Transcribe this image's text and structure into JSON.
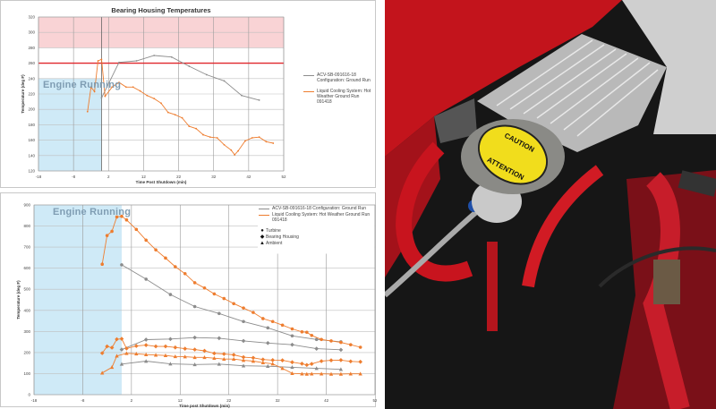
{
  "chart_data": [
    {
      "type": "line",
      "title": "Bearing Housing Temperatures",
      "xlabel": "Time Post Shutdown  (min)",
      "ylabel": "Temperature (deg F)",
      "xlim": [
        -18,
        52
      ],
      "ylim": [
        120,
        320
      ],
      "xticks": [
        -18,
        -8,
        2,
        12,
        22,
        32,
        42,
        52
      ],
      "yticks": [
        120,
        140,
        160,
        180,
        200,
        220,
        240,
        260,
        280,
        300,
        320
      ],
      "grid": true,
      "legend_placement": "right",
      "annotations": {
        "engine_running_label": "Engine Running",
        "engine_running_x": [
          -18,
          0
        ],
        "engine_running_ymax": 240,
        "limit_line_y": 260,
        "caution_band_y": [
          280,
          320
        ],
        "shutdown_line_x": 0
      },
      "colors": {
        "limit": "#e0262b",
        "caution_band": "#f9d3d5",
        "engine_region": "#cfeaf7"
      },
      "series": [
        {
          "name": "ACV-SB-091616-18 Configuration: Ground Run",
          "color": "#8c8c8c",
          "x": [
            0,
            5,
            10,
            15,
            20,
            25,
            30,
            35,
            40,
            45
          ],
          "y": [
            215,
            261,
            263,
            270,
            268,
            256,
            245,
            237,
            218,
            212
          ]
        },
        {
          "name": "Liquid Cooling System: Hot Weather Ground Run 091418",
          "color": "#ee7d2f",
          "x": [
            -4,
            -3,
            -2,
            -1,
            0,
            1,
            3,
            5,
            7,
            9,
            11,
            13,
            15,
            17,
            19,
            21,
            23,
            25,
            27,
            29,
            31,
            33,
            35,
            37,
            38,
            39,
            41,
            43,
            45,
            47,
            49
          ],
          "y": [
            197,
            229,
            223,
            263,
            265,
            217,
            229,
            235,
            229,
            229,
            224,
            218,
            214,
            208,
            196,
            193,
            189,
            178,
            175,
            167,
            164,
            163,
            154,
            147,
            141,
            146,
            159,
            163,
            164,
            158,
            156
          ]
        }
      ]
    },
    {
      "type": "line",
      "title": "",
      "xlabel": "Time post Shutdown  (min)",
      "ylabel": "Temperature (deg F)",
      "xlim": [
        -18,
        52
      ],
      "ylim": [
        0,
        900
      ],
      "xticks": [
        -18,
        -8,
        2,
        12,
        22,
        32,
        42,
        52
      ],
      "yticks": [
        0,
        100,
        200,
        300,
        400,
        500,
        600,
        700,
        800,
        900
      ],
      "grid": true,
      "legend_placement": "top-right",
      "annotations": {
        "engine_running_label": "Engine Running",
        "engine_running_x": [
          -18,
          0
        ]
      },
      "legend_lines": [
        {
          "name": "ACV-SB-091616-18 Configuration: Ground Run",
          "color": "#8c8c8c"
        },
        {
          "name": "Liquid Cooling System: Hot Weather Ground Run 091418",
          "color": "#ee7d2f"
        }
      ],
      "legend_markers": [
        {
          "name": "Turbine",
          "marker": "circle"
        },
        {
          "name": "Bearing Housing",
          "marker": "diamond"
        },
        {
          "name": "Ambient",
          "marker": "triangle"
        }
      ],
      "series": [
        {
          "config": "ACV-SB-091616-18 Configuration: Ground Run",
          "measurement": "Turbine",
          "marker": "circle",
          "color": "#8c8c8c",
          "x": [
            0,
            5,
            10,
            15,
            20,
            25,
            30,
            35,
            40,
            45
          ],
          "y": [
            616,
            548,
            475,
            418,
            385,
            347,
            317,
            279,
            262,
            251
          ]
        },
        {
          "config": "ACV-SB-091616-18 Configuration: Ground Run",
          "measurement": "Bearing Housing",
          "marker": "diamond",
          "color": "#8c8c8c",
          "x": [
            0,
            5,
            10,
            15,
            20,
            25,
            30,
            35,
            40,
            45
          ],
          "y": [
            214,
            261,
            264,
            271,
            268,
            255,
            245,
            237,
            218,
            213
          ]
        },
        {
          "config": "ACV-SB-091616-18 Configuration: Ground Run",
          "measurement": "Ambient",
          "marker": "triangle",
          "color": "#8c8c8c",
          "x": [
            0,
            5,
            10,
            15,
            20,
            25,
            30,
            35,
            40,
            45
          ],
          "y": [
            145,
            159,
            146,
            143,
            145,
            137,
            135,
            130,
            125,
            120
          ]
        },
        {
          "config": "Liquid Cooling System: Hot Weather Ground Run 091418",
          "measurement": "Turbine",
          "marker": "circle",
          "color": "#ee7d2f",
          "x": [
            -4,
            -3,
            -2,
            -1,
            0,
            1,
            3,
            5,
            7,
            9,
            11,
            13,
            15,
            17,
            19,
            21,
            23,
            25,
            27,
            29,
            31,
            33,
            35,
            37,
            38,
            39,
            41,
            43,
            45,
            47,
            49
          ],
          "y": [
            619,
            755,
            775,
            843,
            846,
            829,
            784,
            733,
            687,
            648,
            607,
            574,
            531,
            506,
            478,
            456,
            432,
            411,
            390,
            361,
            347,
            330,
            312,
            298,
            296,
            281,
            262,
            255,
            248,
            237,
            225
          ]
        },
        {
          "config": "Liquid Cooling System: Hot Weather Ground Run 091418",
          "measurement": "Bearing Housing",
          "marker": "diamond",
          "color": "#ee7d2f",
          "x": [
            -4,
            -3,
            -2,
            -1,
            0,
            1,
            3,
            5,
            7,
            9,
            11,
            13,
            15,
            17,
            19,
            21,
            23,
            25,
            27,
            29,
            31,
            33,
            35,
            37,
            38,
            39,
            41,
            43,
            45,
            47,
            49
          ],
          "y": [
            197,
            229,
            223,
            263,
            265,
            219,
            231,
            235,
            229,
            229,
            224,
            218,
            214,
            208,
            196,
            193,
            189,
            178,
            175,
            167,
            164,
            163,
            154,
            147,
            141,
            146,
            159,
            163,
            164,
            158,
            156
          ]
        },
        {
          "config": "Liquid Cooling System: Hot Weather Ground Run 091418",
          "measurement": "Ambient",
          "marker": "triangle",
          "color": "#ee7d2f",
          "x": [
            -4,
            -2,
            -1,
            1,
            3,
            5,
            7,
            9,
            11,
            13,
            15,
            17,
            19,
            21,
            23,
            25,
            27,
            29,
            31,
            33,
            35,
            37,
            38,
            39,
            41,
            43,
            45,
            47,
            49
          ],
          "y": [
            103,
            130,
            184,
            196,
            194,
            190,
            188,
            186,
            181,
            180,
            177,
            177,
            173,
            169,
            169,
            163,
            159,
            152,
            146,
            125,
            101,
            99,
            98,
            99,
            99,
            98,
            98,
            99,
            99
          ]
        }
      ]
    }
  ],
  "photo": {
    "subject": "radiator with pressure cap in engine bay",
    "cap_label_top": "CAUTION",
    "cap_label_bottom": "ATTENTION"
  }
}
